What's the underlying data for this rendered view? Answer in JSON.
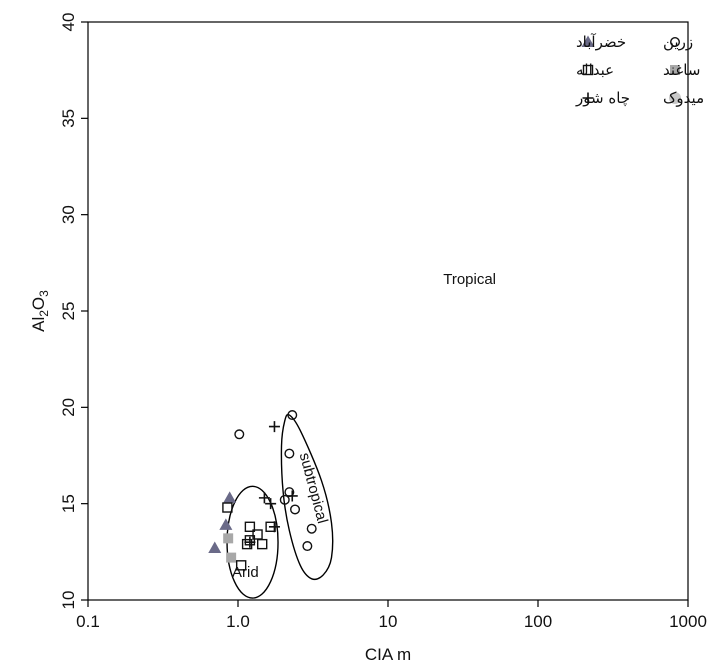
{
  "chart_data": {
    "type": "scatter",
    "title": "",
    "xlabel": "CIA m",
    "ylabel": {
      "base": "Al",
      "sub1": "2",
      "mid": "O",
      "sub2": "3"
    },
    "x_scale": "log",
    "xlim": [
      0.1,
      1000
    ],
    "ylim": [
      10,
      40
    ],
    "x_ticks": [
      {
        "value": 0.1,
        "label": "0.1"
      },
      {
        "value": 1,
        "label": "1.0"
      },
      {
        "value": 10,
        "label": "10"
      },
      {
        "value": 100,
        "label": "100"
      },
      {
        "value": 1000,
        "label": "1000"
      }
    ],
    "y_ticks": [
      {
        "value": 10,
        "label": "10"
      },
      {
        "value": 15,
        "label": "15"
      },
      {
        "value": 20,
        "label": "20"
      },
      {
        "value": 25,
        "label": "25"
      },
      {
        "value": 30,
        "label": "30"
      },
      {
        "value": 35,
        "label": "35"
      },
      {
        "value": 40,
        "label": "40"
      }
    ],
    "grid": false,
    "legend_position": "top-right",
    "series": [
      {
        "name": "زرین",
        "marker": "circle-open",
        "color": "#111111",
        "points": [
          [
            1.02,
            18.6
          ],
          [
            2.3,
            19.6
          ],
          [
            2.2,
            17.6
          ],
          [
            2.05,
            15.2
          ],
          [
            2.2,
            15.6
          ],
          [
            2.4,
            14.7
          ],
          [
            3.1,
            13.7
          ],
          [
            2.9,
            12.8
          ]
        ]
      },
      {
        "name": "خضرآباد",
        "marker": "triangle-filled",
        "color": "#6a6a88",
        "points": [
          [
            0.88,
            15.3
          ],
          [
            0.83,
            13.9
          ],
          [
            0.7,
            12.7
          ]
        ]
      },
      {
        "name": "ساغند",
        "marker": "square-filled",
        "color": "#a8a8a8",
        "points": [
          [
            0.86,
            13.2
          ],
          [
            0.9,
            12.2
          ]
        ]
      },
      {
        "name": "عبداله",
        "marker": "square-open",
        "color": "#111111",
        "points": [
          [
            0.85,
            14.8
          ],
          [
            1.2,
            13.8
          ],
          [
            1.65,
            13.8
          ],
          [
            1.35,
            13.4
          ],
          [
            1.2,
            13.1
          ],
          [
            1.15,
            12.9
          ],
          [
            1.45,
            12.9
          ],
          [
            1.05,
            11.8
          ]
        ]
      },
      {
        "name": "میدوک",
        "marker": "circle-filled",
        "color": "#c8c8c8",
        "points": []
      },
      {
        "name": "چاه شور",
        "marker": "plus",
        "color": "#111111",
        "points": [
          [
            1.75,
            19.0
          ],
          [
            2.3,
            15.4
          ],
          [
            1.5,
            15.3
          ],
          [
            1.65,
            15.0
          ],
          [
            1.75,
            13.8
          ],
          [
            1.2,
            13.0
          ]
        ]
      }
    ],
    "regions": [
      {
        "label": "Tropical",
        "type": "text",
        "x": 35,
        "y": 26.6,
        "rotation": 0
      },
      {
        "label": "Arid",
        "type": "ellipse",
        "cx": 1.25,
        "cy": 13.0,
        "rx_decades": 0.17,
        "ry": 2.9,
        "label_x": 1.12,
        "label_y": 11.4,
        "rotation": 0
      },
      {
        "label": "subtropical",
        "type": "path",
        "outline": [
          [
            2.2,
            19.6
          ],
          [
            2.6,
            18.8
          ],
          [
            3.6,
            16.2
          ],
          [
            4.2,
            14.0
          ],
          [
            4.2,
            12.2
          ],
          [
            3.7,
            11.3
          ],
          [
            3.1,
            11.1
          ],
          [
            2.6,
            11.8
          ],
          [
            2.2,
            13.6
          ],
          [
            2.0,
            15.6
          ],
          [
            1.95,
            18.0
          ],
          [
            2.05,
            19.3
          ]
        ],
        "label_x": 3.15,
        "label_y": 15.8,
        "rotation": 75
      }
    ]
  }
}
